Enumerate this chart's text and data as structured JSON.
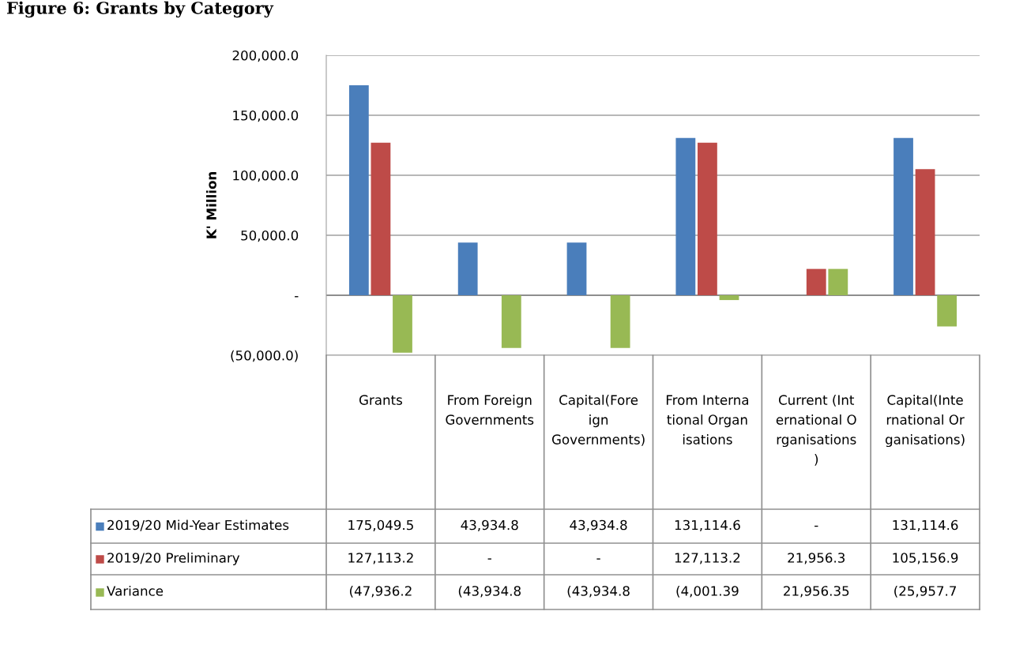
{
  "chart_data": {
    "type": "bar",
    "title": "Figure 6: Grants by Category",
    "ylabel": "K' Million",
    "categories": [
      "Grants",
      "From Foreign Governments",
      "Capital(Foreign Governments)",
      "From International Organisations",
      "Current (International Organisations)",
      "Capital(International Organisations)"
    ],
    "series": [
      {
        "name": "2019/20 Mid-Year Estimates",
        "color": "#4a7ebb",
        "values": [
          175049.5,
          43934.8,
          43934.8,
          131114.6,
          0,
          131114.6
        ],
        "value_labels": [
          "175,049.5",
          "43,934.8",
          "43,934.8",
          "131,114.6",
          "-",
          "131,114.6"
        ]
      },
      {
        "name": "2019/20 Preliminary",
        "color": "#be4b48",
        "values": [
          127113.2,
          0,
          0,
          127113.2,
          21956.3,
          105156.9
        ],
        "value_labels": [
          "127,113.2",
          "-",
          "-",
          "127,113.2",
          "21,956.3",
          "105,156.9"
        ]
      },
      {
        "name": "Variance",
        "color": "#98b954",
        "values": [
          -47936.2,
          -43934.8,
          -43934.8,
          -4001.39,
          21956.35,
          -25957.7
        ],
        "value_labels": [
          "(47,936.2",
          "(43,934.8",
          "(43,934.8",
          "(4,001.39",
          "21,956.35",
          "(25,957.7"
        ]
      }
    ],
    "ylim": [
      -50000,
      200000
    ],
    "yticks": [
      {
        "value": -50000,
        "label": "(50,000.0)"
      },
      {
        "value": 0,
        "label": "-"
      },
      {
        "value": 50000,
        "label": "50,000.0"
      },
      {
        "value": 100000,
        "label": "100,000.0"
      },
      {
        "value": 150000,
        "label": "150,000.0"
      },
      {
        "value": 200000,
        "label": "200,000.0"
      }
    ],
    "grid": "y",
    "legend": "bottom"
  }
}
